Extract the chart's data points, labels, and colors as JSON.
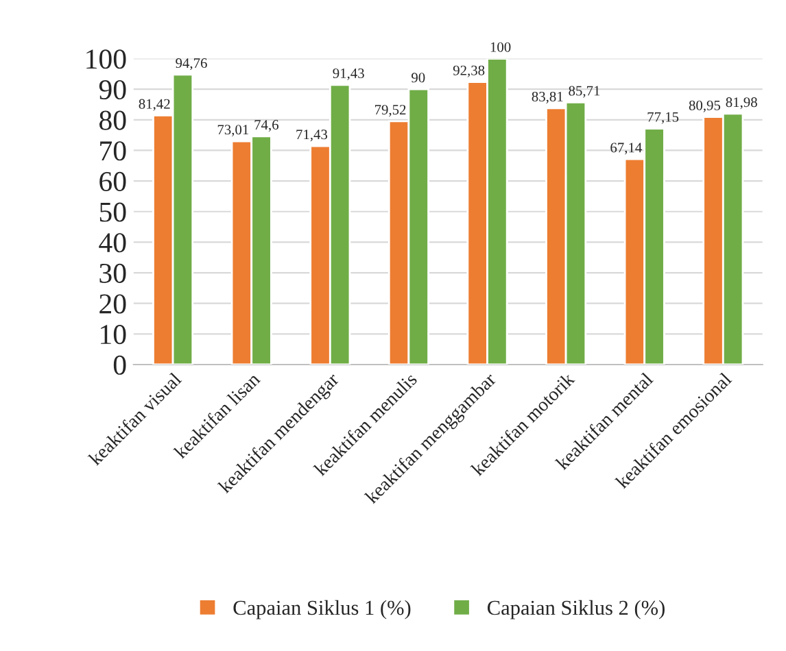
{
  "chart_data": {
    "type": "bar",
    "categories": [
      "keaktifan visual",
      "keaktifan lisan",
      "keaktifan mendengar",
      "keaktifan menulis",
      "keaktifan menggambar",
      "keaktifan motorik",
      "keaktifan mental",
      "keaktifan emosional"
    ],
    "series": [
      {
        "name": "Capaian Siklus 1 (%)",
        "color": "#ed7d31",
        "values": [
          81.42,
          73.01,
          71.43,
          79.52,
          92.38,
          83.81,
          67.14,
          80.95
        ],
        "value_labels": [
          "81,42",
          "73,01",
          "71,43",
          "79,52",
          "92,38",
          "83,81",
          "67,14",
          "80,95"
        ]
      },
      {
        "name": "Capaian Siklus 2 (%)",
        "color": "#70ad47",
        "values": [
          94.76,
          74.6,
          91.43,
          90,
          100,
          85.71,
          77.15,
          81.98
        ],
        "value_labels": [
          "94,76",
          "74,6",
          "91,43",
          "90",
          "100",
          "85,71",
          "77,15",
          "81,98"
        ]
      }
    ],
    "ylim": [
      0,
      100
    ],
    "yticks": [
      0,
      10,
      20,
      30,
      40,
      50,
      60,
      70,
      80,
      90,
      100
    ],
    "grid": "y",
    "legend": "bottom"
  }
}
